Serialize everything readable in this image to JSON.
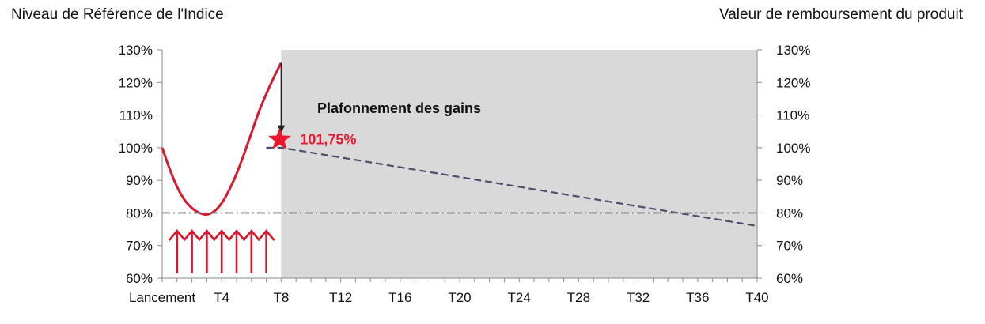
{
  "left_axis_title": "Niveau de Référence de l'Indice",
  "right_axis_title": "Valeur de remboursement du produit",
  "annotation": "Plafonnement des gains",
  "cap_value_label": "101,75%",
  "colors": {
    "index_curve": "#d7192d",
    "repayment_line": "#4a4f6b",
    "barrier_line": "#808080",
    "shaded_area": "#d9d9d9",
    "star": "#e8192f",
    "arrow": "#222222"
  },
  "chart_data": {
    "type": "line",
    "title": "",
    "xlabel": "",
    "ylabel_left": "Niveau de Référence de l'Indice",
    "ylabel_right": "Valeur de remboursement du produit",
    "x_ticks": [
      "Lancement",
      "T4",
      "T8",
      "T12",
      "T16",
      "T20",
      "T24",
      "T28",
      "T32",
      "T36",
      "T40"
    ],
    "x_tick_positions": [
      0,
      4,
      8,
      12,
      16,
      20,
      24,
      28,
      32,
      36,
      40
    ],
    "x_range": [
      0,
      40
    ],
    "y_ticks": [
      "60%",
      "70%",
      "80%",
      "90%",
      "100%",
      "110%",
      "120%",
      "130%"
    ],
    "y_range": [
      60,
      130
    ],
    "shaded_region": {
      "x_from": 8,
      "x_to": 40
    },
    "series": [
      {
        "style": "solid",
        "points": [
          [
            0,
            100
          ],
          [
            0.5,
            93.5
          ],
          [
            1,
            88
          ],
          [
            1.5,
            84
          ],
          [
            2,
            81.5
          ],
          [
            2.5,
            80
          ],
          [
            3,
            79.5
          ],
          [
            3.5,
            80.5
          ],
          [
            4,
            83
          ],
          [
            4.5,
            87
          ],
          [
            5,
            92
          ],
          [
            5.5,
            98
          ],
          [
            6,
            104.5
          ],
          [
            6.5,
            111
          ],
          [
            7,
            116.5
          ],
          [
            7.5,
            121.5
          ],
          [
            8,
            126
          ]
        ]
      },
      {
        "style": "dashed",
        "points": [
          [
            7,
            100
          ],
          [
            8,
            100
          ],
          [
            40,
            76
          ]
        ]
      },
      {
        "style": "dash-dot",
        "points": [
          [
            0,
            80
          ],
          [
            40,
            80
          ]
        ]
      }
    ],
    "autocall_arrows_x": [
      1,
      2,
      3,
      4,
      5,
      6,
      7
    ],
    "cap": {
      "x": 8,
      "y": 101.75,
      "arrow_from_y": 126
    }
  }
}
